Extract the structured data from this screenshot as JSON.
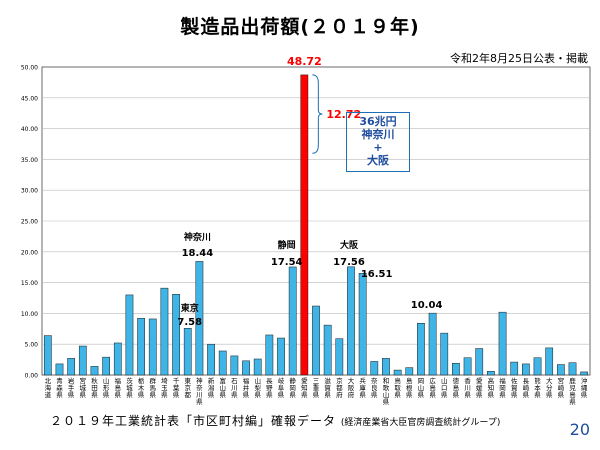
{
  "header": {
    "title": "製造品出荷額(２０１９年)",
    "date_note": "令和2年8月25日公表・掲載"
  },
  "footer": {
    "source_main": "２０１９年工業統計表「市区町村編」確報データ",
    "source_org": "(経済産業省大臣官房調査統計グループ)",
    "page_number": "20"
  },
  "annotations": {
    "diff_value": "12.72",
    "note_line1": "36兆円",
    "note_line2": "神奈川",
    "note_line3": "+",
    "note_line4": "大阪",
    "labels": [
      {
        "name": "神奈川",
        "value": "18.44"
      },
      {
        "name": "東京",
        "value": "7.58"
      },
      {
        "name": "静岡",
        "value": "17.54"
      },
      {
        "name": "",
        "value": "48.72"
      },
      {
        "name": "大阪",
        "value": "17.56"
      },
      {
        "name": "",
        "value": "16.51"
      },
      {
        "name": "",
        "value": "10.04"
      }
    ]
  },
  "chart_data": {
    "type": "bar",
    "title": "製造品出荷額(２０１９年)",
    "ylim": [
      0,
      50
    ],
    "yticks": [
      "0.00",
      "5.00",
      "10.00",
      "15.00",
      "20.00",
      "25.00",
      "30.00",
      "35.00",
      "40.00",
      "45.00",
      "50.00"
    ],
    "grid": true,
    "categories": [
      "北海道",
      "青森県",
      "岩手県",
      "宮城県",
      "秋田県",
      "山形県",
      "福島県",
      "茨城県",
      "栃木県",
      "群馬県",
      "埼玉県",
      "千葉県",
      "東京都",
      "神奈川県",
      "新潟県",
      "富山県",
      "石川県",
      "福井県",
      "山梨県",
      "長野県",
      "岐阜県",
      "静岡県",
      "愛知県",
      "三重県",
      "滋賀県",
      "京都府",
      "大阪府",
      "兵庫県",
      "奈良県",
      "和歌山県",
      "鳥取県",
      "島根県",
      "岡山県",
      "広島県",
      "山口県",
      "徳島県",
      "香川県",
      "愛媛県",
      "高知県",
      "福岡県",
      "佐賀県",
      "長崎県",
      "熊本県",
      "大分県",
      "宮崎県",
      "鹿児島県",
      "沖縄県"
    ],
    "values": [
      6.4,
      1.8,
      2.7,
      4.7,
      1.4,
      2.9,
      5.2,
      13.0,
      9.2,
      9.1,
      14.1,
      13.1,
      7.58,
      18.44,
      5.0,
      3.9,
      3.1,
      2.3,
      2.6,
      6.5,
      6.0,
      17.54,
      48.72,
      11.2,
      8.1,
      5.9,
      17.56,
      16.51,
      2.2,
      2.7,
      0.8,
      1.2,
      8.4,
      10.04,
      6.8,
      1.9,
      2.8,
      4.3,
      0.6,
      10.2,
      2.1,
      1.8,
      2.8,
      4.4,
      1.7,
      2.0,
      0.5
    ],
    "highlight": {
      "category": "愛知県",
      "color": "#ff0000"
    },
    "bar_color": "#3fb4e6"
  }
}
